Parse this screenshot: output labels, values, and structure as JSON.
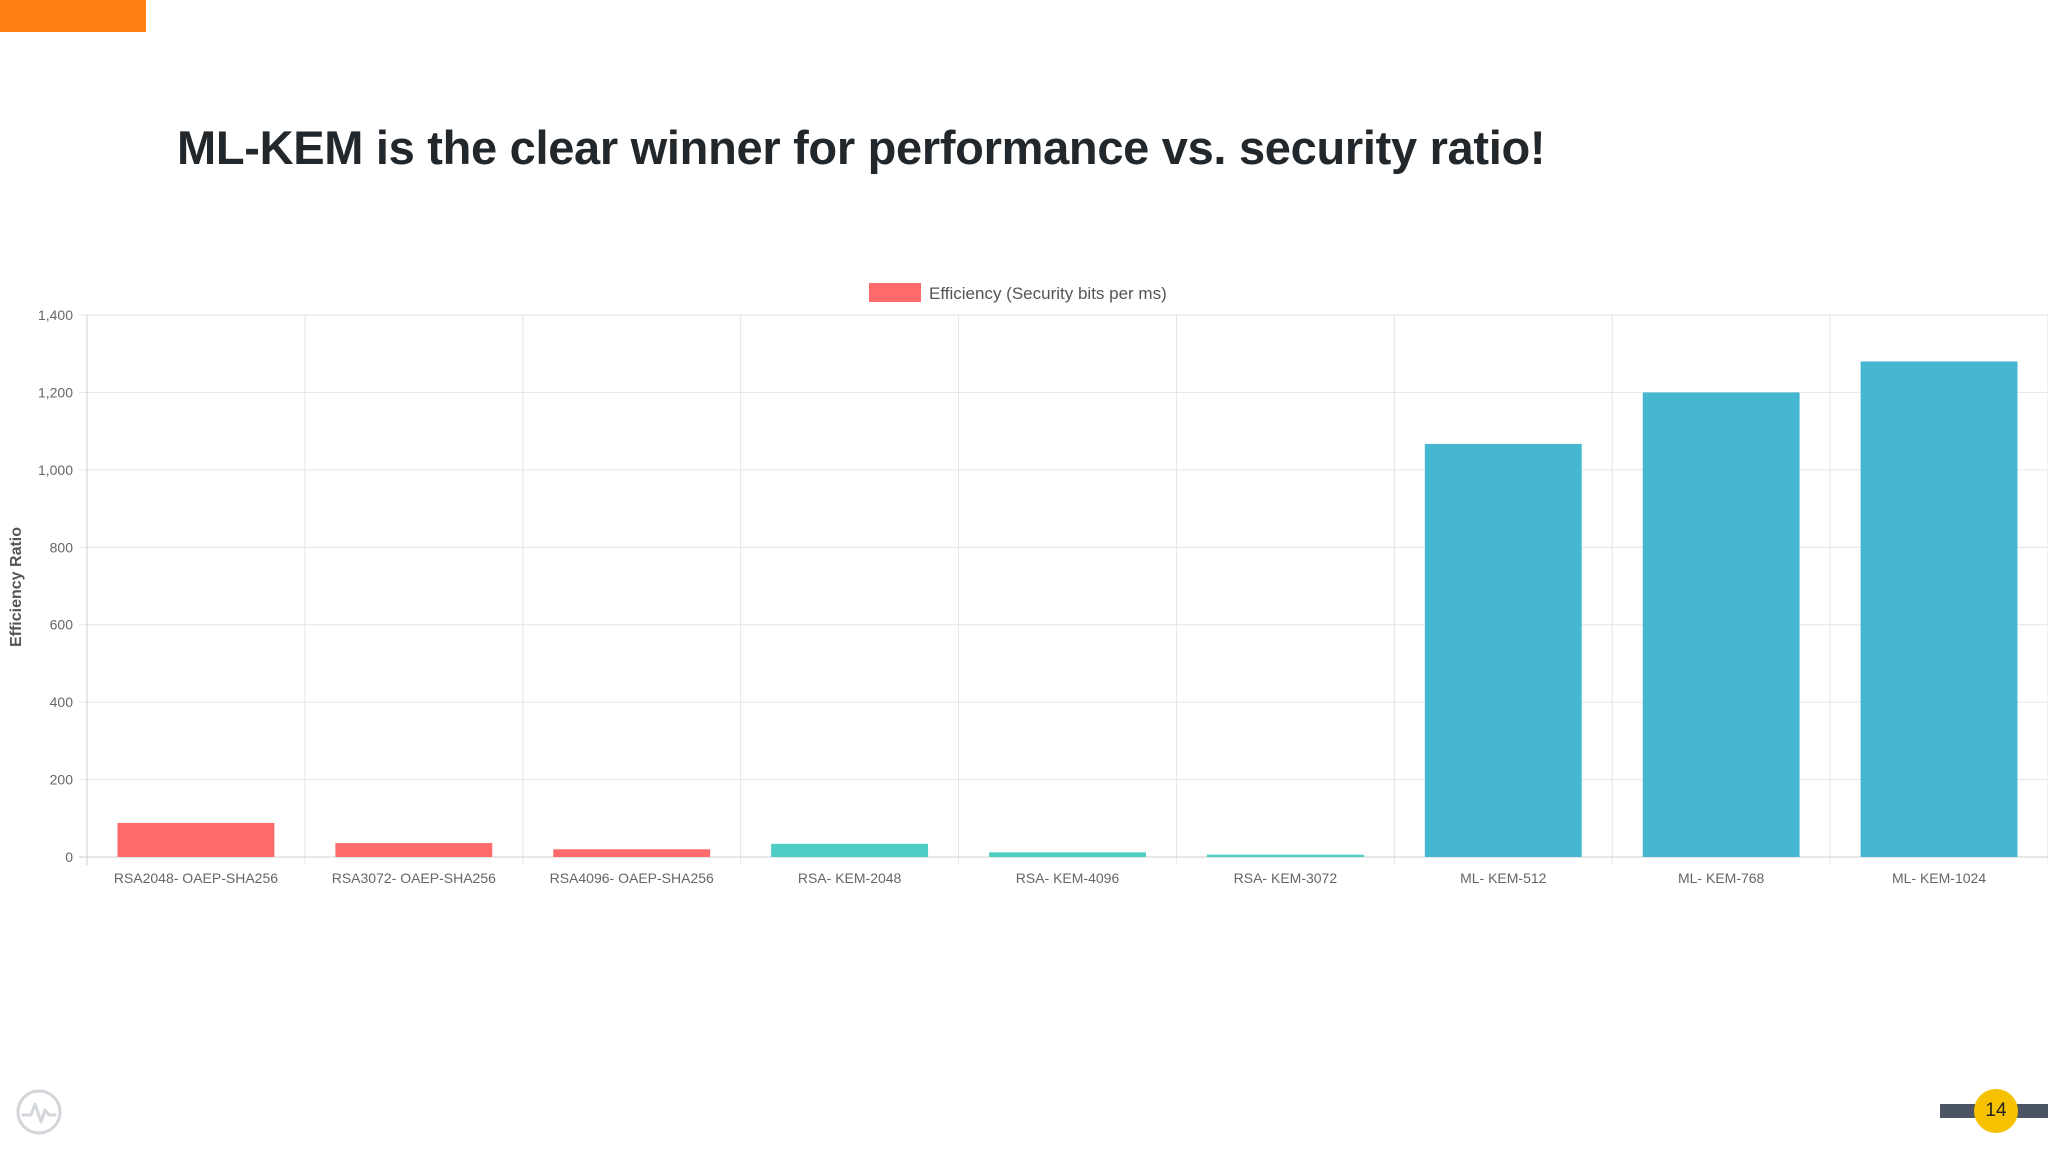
{
  "slide": {
    "title": "ML-KEM is the clear winner for performance vs. security ratio!",
    "page_number": "14",
    "accent_color": "#ff7f11",
    "badge_color": "#f6c200",
    "logo_icon": "activity-pulse-icon"
  },
  "chart_data": {
    "type": "bar",
    "title": "",
    "xlabel": "",
    "ylabel": "Efficiency Ratio",
    "ylim": [
      0,
      1400
    ],
    "yticks": [
      0,
      200,
      400,
      600,
      800,
      1000,
      1200,
      1400
    ],
    "ytick_labels": [
      "0",
      "200",
      "400",
      "600",
      "800",
      "1,000",
      "1,200",
      "1,400"
    ],
    "grid": true,
    "legend": {
      "label": "Efficiency (Security bits per ms)",
      "position": "top-center",
      "color": "#ff6b6b"
    },
    "categories": [
      "RSA2048- OAEP-SHA256",
      "RSA3072- OAEP-SHA256",
      "RSA4096- OAEP-SHA256",
      "RSA- KEM-2048",
      "RSA- KEM-4096",
      "RSA- KEM-3072",
      "ML- KEM-512",
      "ML- KEM-768",
      "ML- KEM-1024"
    ],
    "values": [
      88,
      36,
      20,
      34,
      12,
      6,
      1067,
      1200,
      1280
    ],
    "colors": [
      "#ff6b6b",
      "#ff6b6b",
      "#ff6b6b",
      "#4ecdc4",
      "#4ecdc4",
      "#4ecdc4",
      "#45b7d1",
      "#45b7d1",
      "#45b7d1"
    ]
  }
}
